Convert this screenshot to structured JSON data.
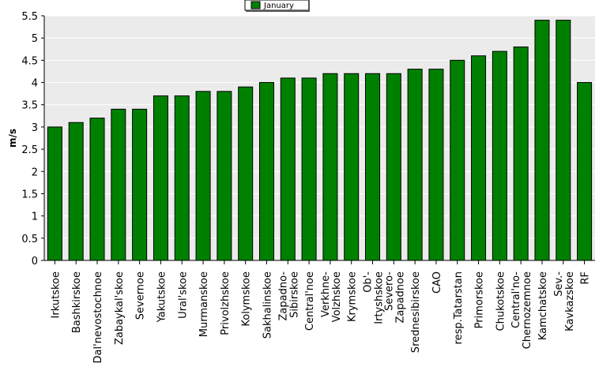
{
  "chart_data": {
    "type": "bar",
    "title": "",
    "xlabel": "",
    "ylabel": "m/s",
    "ylim": [
      0,
      5.5
    ],
    "yticks": [
      "0",
      "0.5",
      "1",
      "1.5",
      "2",
      "2.5",
      "3",
      "3.5",
      "4",
      "4.5",
      "5",
      "5.5"
    ],
    "grid": true,
    "legend_position": "top-center",
    "colors": {
      "bar": "#008000",
      "plot_bg": "#ebebeb",
      "grid": "#ffffff"
    },
    "categories": [
      "Irkutskoe",
      "Bashkirskoe",
      "Dal'nevostochnoe",
      "Zabaykal'skoe",
      "Severnoe",
      "Yakutskoe",
      "Ural'skoe",
      "Murmanskoe",
      "Privolzhskoe",
      "Kolymskoe",
      "Sakhalinskoe",
      "Zapadno-Sibirskoe",
      "Central'noe",
      "Verkhne-Volzhskoe",
      "Krymskoe",
      "Ob'-Irtyshskoe",
      "Severo-Zapadnoe",
      "Srednesibirskoe",
      "CAO",
      "resp.Tatarstan",
      "Primorskoe",
      "Chukotskoe",
      "Central'no-Chernozemnoe",
      "Kamchatskoe",
      "Sev.-Kavkazskoe",
      "RF"
    ],
    "category_lines": [
      [
        "Irkutskoe"
      ],
      [
        "Bashkirskoe"
      ],
      [
        "Dal'nevostochnoe"
      ],
      [
        "Zabaykal'skoe"
      ],
      [
        "Severnoe"
      ],
      [
        "Yakutskoe"
      ],
      [
        "Ural'skoe"
      ],
      [
        "Murmanskoe"
      ],
      [
        "Privolzhskoe"
      ],
      [
        "Kolymskoe"
      ],
      [
        "Sakhalinskoe"
      ],
      [
        "Zapadno-",
        "Sibirskoe"
      ],
      [
        "Central'noe"
      ],
      [
        "Verkhne-",
        "Volzhskoe"
      ],
      [
        "Krymskoe"
      ],
      [
        "Ob'-",
        "Irtyshskoe"
      ],
      [
        "Severo-",
        "Zapadnoe"
      ],
      [
        "Srednesibirskoe"
      ],
      [
        "CAO"
      ],
      [
        "resp.Tatarstan"
      ],
      [
        "Primorskoe"
      ],
      [
        "Chukotskoe"
      ],
      [
        "Central'no-",
        "Chernozemnoe"
      ],
      [
        "Kamchatskoe"
      ],
      [
        "Sev.-",
        "Kavkazskoe"
      ],
      [
        "RF"
      ]
    ],
    "series": [
      {
        "name": "January",
        "values": [
          3.0,
          3.1,
          3.2,
          3.4,
          3.4,
          3.7,
          3.7,
          3.8,
          3.8,
          3.9,
          4.0,
          4.1,
          4.1,
          4.2,
          4.2,
          4.2,
          4.2,
          4.3,
          4.3,
          4.5,
          4.6,
          4.7,
          4.8,
          5.4,
          5.4,
          4.0
        ]
      }
    ]
  }
}
